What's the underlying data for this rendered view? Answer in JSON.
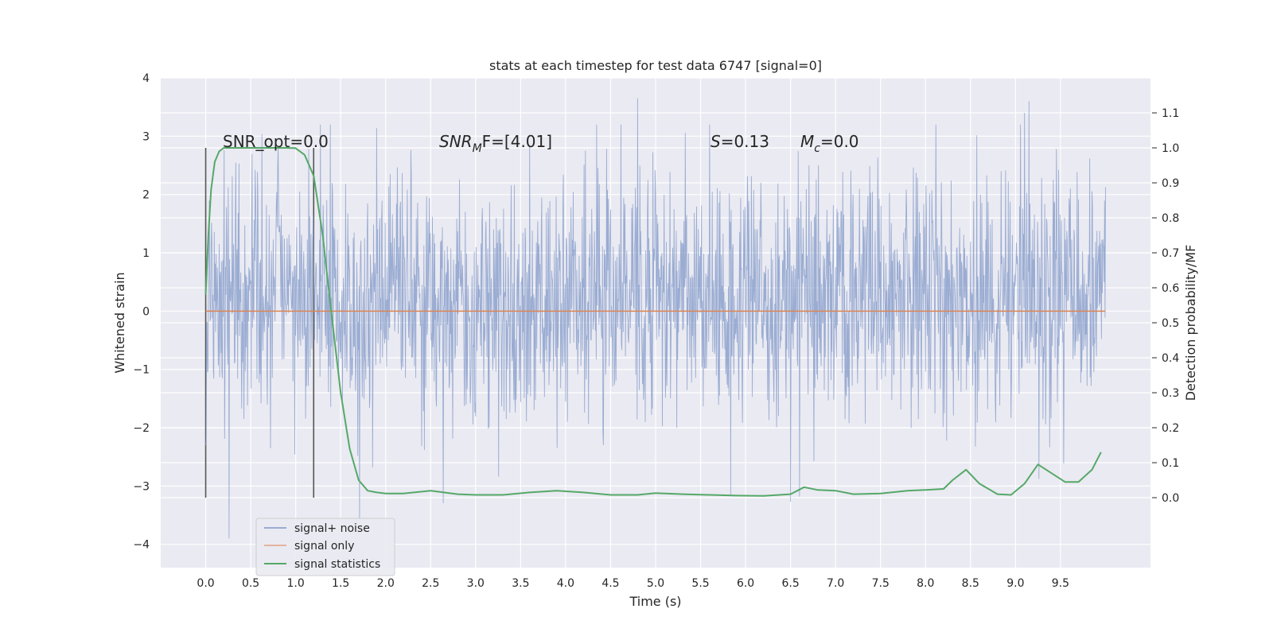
{
  "chart_data": {
    "type": "line",
    "title": "stats at each timestep for test data 6747 [signal=0]",
    "xlabel": "Time (s)",
    "ylabel_left": "Whitened strain",
    "ylabel_right": "Detection probability/MF",
    "xlim": [
      -0.5,
      10.5
    ],
    "ylim_left": [
      -4.4,
      4.0
    ],
    "ylim_right": [
      -0.2,
      1.2
    ],
    "x_ticks": [
      0.0,
      0.5,
      1.0,
      1.5,
      2.0,
      2.5,
      3.0,
      3.5,
      4.0,
      4.5,
      5.0,
      5.5,
      6.0,
      6.5,
      7.0,
      7.5,
      8.0,
      8.5,
      9.0,
      9.5
    ],
    "x_tick_labels": [
      "0.0",
      "0.5",
      "1.0",
      "1.5",
      "2.0",
      "2.5",
      "3.0",
      "3.5",
      "4.0",
      "4.5",
      "5.0",
      "5.5",
      "6.0",
      "6.5",
      "7.0",
      "7.5",
      "8.0",
      "8.5",
      "9.0",
      "9.5"
    ],
    "y_left_ticks": [
      4,
      3,
      2,
      1,
      0,
      -1,
      -2,
      -3,
      -4
    ],
    "y_left_tick_labels": [
      "4",
      "3",
      "2",
      "1",
      "0",
      "−1",
      "−2",
      "−3",
      "−4"
    ],
    "y_right_ticks": [
      1.1,
      1.0,
      0.9,
      0.8,
      0.7,
      0.6,
      0.5,
      0.4,
      0.3,
      0.2,
      0.1,
      0.0
    ],
    "y_right_tick_labels": [
      "1.1",
      "1.0",
      "0.9",
      "0.8",
      "0.7",
      "0.6",
      "0.5",
      "0.4",
      "0.3",
      "0.2",
      "0.1",
      "0.0"
    ],
    "grid": true,
    "legend_position": "lower-left",
    "series": [
      {
        "name": "signal+ noise",
        "axis": "left",
        "color": "#7f97c7",
        "x_range": [
          0.0,
          10.0
        ],
        "envelope_typical": [
          -1.6,
          2.1
        ],
        "notable_peaks": [
          {
            "x": 4.8,
            "y": 3.65
          },
          {
            "x": 9.15,
            "y": 3.6
          },
          {
            "x": 9.1,
            "y": 3.4
          },
          {
            "x": 1.71,
            "y": -3.6
          },
          {
            "x": 0.26,
            "y": -3.9
          }
        ]
      },
      {
        "name": "signal only",
        "axis": "left",
        "color": "#dd8452",
        "x": [
          0.0,
          10.0
        ],
        "y": [
          0.0,
          0.0
        ]
      },
      {
        "name": "signal statistics",
        "axis": "right",
        "color": "#55a868",
        "x": [
          0.0,
          0.03,
          0.06,
          0.1,
          0.15,
          0.2,
          0.3,
          0.5,
          0.7,
          0.9,
          1.0,
          1.1,
          1.2,
          1.3,
          1.4,
          1.5,
          1.6,
          1.7,
          1.8,
          1.9,
          2.0,
          2.2,
          2.5,
          2.8,
          3.0,
          3.3,
          3.6,
          3.9,
          4.2,
          4.5,
          4.8,
          5.0,
          5.3,
          5.6,
          5.9,
          6.2,
          6.5,
          6.65,
          6.8,
          7.0,
          7.2,
          7.5,
          7.8,
          8.0,
          8.2,
          8.3,
          8.45,
          8.6,
          8.8,
          8.95,
          9.1,
          9.25,
          9.4,
          9.55,
          9.7,
          9.85,
          9.95
        ],
        "y": [
          0.58,
          0.75,
          0.88,
          0.96,
          0.99,
          1.0,
          1.0,
          1.0,
          1.0,
          1.0,
          0.999,
          0.98,
          0.92,
          0.75,
          0.52,
          0.3,
          0.14,
          0.05,
          0.02,
          0.015,
          0.012,
          0.012,
          0.02,
          0.01,
          0.008,
          0.008,
          0.015,
          0.02,
          0.015,
          0.008,
          0.008,
          0.013,
          0.01,
          0.008,
          0.006,
          0.005,
          0.01,
          0.03,
          0.022,
          0.02,
          0.01,
          0.012,
          0.02,
          0.022,
          0.025,
          0.05,
          0.08,
          0.04,
          0.01,
          0.008,
          0.04,
          0.095,
          0.07,
          0.045,
          0.045,
          0.08,
          0.13
        ]
      }
    ],
    "vertical_markers": [
      0.0,
      1.2
    ],
    "annotations": {
      "snr_opt": "SNR_opt=0.0",
      "snr_mf_base": "SNR",
      "snr_mf_sub": "M",
      "snr_mf_rest": "F=[4.01]",
      "s_base": "S",
      "s_rest": "=0.13",
      "mc_base": "M",
      "mc_sub": "c",
      "mc_rest": "=0.0"
    }
  }
}
